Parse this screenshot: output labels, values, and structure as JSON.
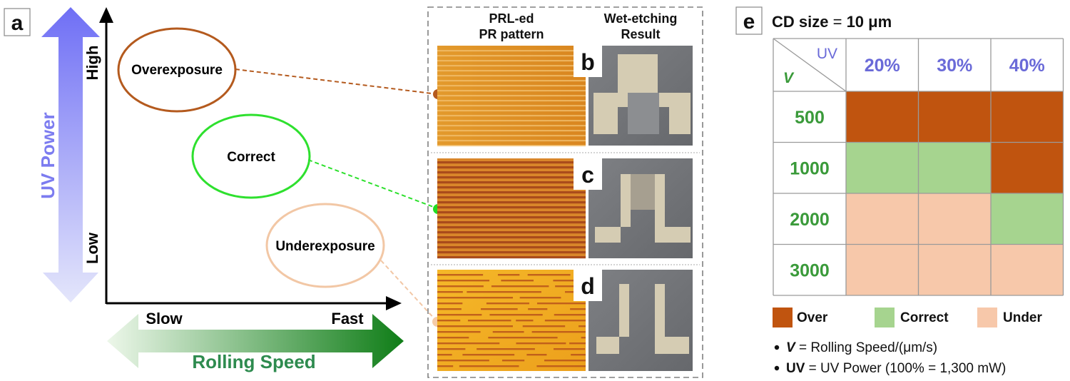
{
  "panels": {
    "a": "a",
    "b": "b",
    "c": "c",
    "d": "d",
    "e": "e"
  },
  "axes": {
    "y_title": "UV Power",
    "y_high": "High",
    "y_low": "Low",
    "x_title": "Rolling Speed",
    "x_slow": "Slow",
    "x_fast": "Fast"
  },
  "regions": {
    "over": "Overexposure",
    "correct": "Correct",
    "under": "Underexposure"
  },
  "images": {
    "col1_line1": "PRL-ed",
    "col1_line2": "PR pattern",
    "col2_line1": "Wet-etching",
    "col2_line2": "Result"
  },
  "table": {
    "title_a": "CD size",
    "title_b": " = ",
    "title_c": "10 μm",
    "corner_uv": "UV",
    "corner_v": "V",
    "columns": [
      "20%",
      "30%",
      "40%"
    ],
    "rows": [
      {
        "label": "500",
        "cells": [
          "over",
          "over",
          "over"
        ]
      },
      {
        "label": "1000",
        "cells": [
          "correct",
          "correct",
          "over"
        ]
      },
      {
        "label": "2000",
        "cells": [
          "under",
          "under",
          "correct"
        ]
      },
      {
        "label": "3000",
        "cells": [
          "under",
          "under",
          "under"
        ]
      }
    ]
  },
  "legend": {
    "over": "Over",
    "correct": "Correct",
    "under": "Under"
  },
  "notes": {
    "v_sym": "V",
    "v_text": " = Rolling Speed/(μm/s)",
    "uv_sym": "UV",
    "uv_text": " = UV Power (100% = 1,300 mW)"
  },
  "colors": {
    "over": "#c0540f",
    "correct": "#a6d48f",
    "under": "#f7c8aa",
    "uv_blue": "#7c7cf0",
    "speed_green": "#2e8b4f",
    "header_blue": "#6a6ad8",
    "row_green": "#3a9a3a",
    "ellipse_over": "#b45a1e",
    "ellipse_correct": "#2ee02e",
    "ellipse_under": "#f2c7a5"
  }
}
